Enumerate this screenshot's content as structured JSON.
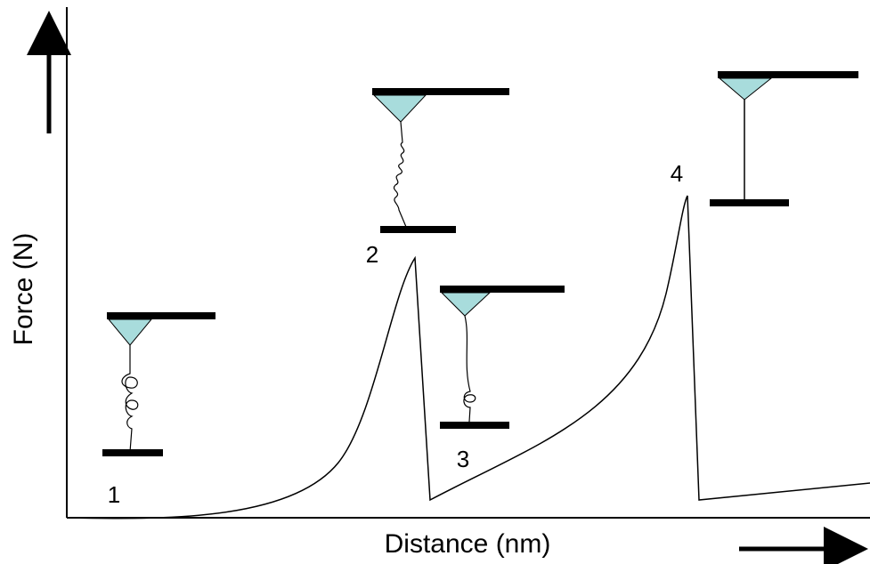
{
  "axes": {
    "y_label": "Force (N)",
    "x_label": "Distance (nm)"
  },
  "states": [
    {
      "label": "1"
    },
    {
      "label": "2"
    },
    {
      "label": "3"
    },
    {
      "label": "4"
    }
  ]
}
